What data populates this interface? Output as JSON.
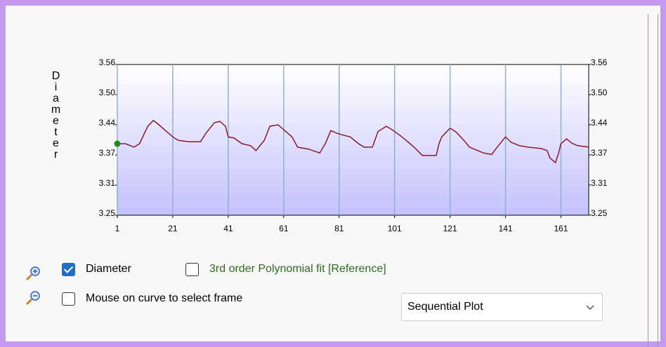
{
  "chart_data": {
    "type": "line",
    "y_label": "Diameter",
    "x": [
      1,
      4,
      7,
      9,
      12,
      14,
      16,
      18,
      21,
      23,
      27,
      31,
      33,
      36,
      38,
      40,
      41,
      43,
      46,
      49,
      51,
      54,
      56,
      59,
      61,
      64,
      66,
      70,
      74,
      76,
      78,
      80,
      83,
      85,
      88,
      90,
      93,
      95,
      98,
      100,
      103,
      106,
      108,
      111,
      116,
      117,
      118,
      121,
      123,
      126,
      128,
      131,
      133,
      136,
      138,
      141,
      143,
      146,
      149,
      154,
      156,
      157,
      159,
      160,
      161,
      163,
      165,
      167,
      171
    ],
    "series": [
      {
        "name": "Diameter",
        "color": "#8b1a2a",
        "values": [
          3.397,
          3.397,
          3.39,
          3.397,
          3.433,
          3.445,
          3.436,
          3.426,
          3.411,
          3.404,
          3.401,
          3.401,
          3.419,
          3.44,
          3.443,
          3.433,
          3.411,
          3.409,
          3.397,
          3.393,
          3.383,
          3.404,
          3.433,
          3.436,
          3.426,
          3.411,
          3.39,
          3.386,
          3.378,
          3.397,
          3.424,
          3.419,
          3.414,
          3.411,
          3.397,
          3.39,
          3.39,
          3.422,
          3.433,
          3.426,
          3.414,
          3.4,
          3.39,
          3.373,
          3.373,
          3.397,
          3.411,
          3.429,
          3.422,
          3.404,
          3.39,
          3.383,
          3.378,
          3.375,
          3.39,
          3.411,
          3.4,
          3.393,
          3.39,
          3.387,
          3.383,
          3.368,
          3.358,
          3.375,
          3.397,
          3.407,
          3.398,
          3.393,
          3.39
        ]
      }
    ],
    "xlim": [
      1,
      171
    ],
    "xticks": [
      1,
      21,
      41,
      61,
      81,
      101,
      121,
      141,
      161
    ],
    "ylim": [
      3.25,
      3.56
    ],
    "yticks": [
      {
        "value": 3.25,
        "label": "3.25"
      },
      {
        "value": 3.312,
        "label": "3.31"
      },
      {
        "value": 3.374,
        "label": "3.37"
      },
      {
        "value": 3.436,
        "label": "3.44"
      },
      {
        "value": 3.498,
        "label": "3.50"
      },
      {
        "value": 3.56,
        "label": "3.56"
      }
    ],
    "grid": true
  },
  "controls": {
    "fit_label": "3rd order Polynomial fit [Reference]",
    "mouse_label": "Mouse on curve to select frame",
    "plot_mode": "Sequential Plot"
  }
}
